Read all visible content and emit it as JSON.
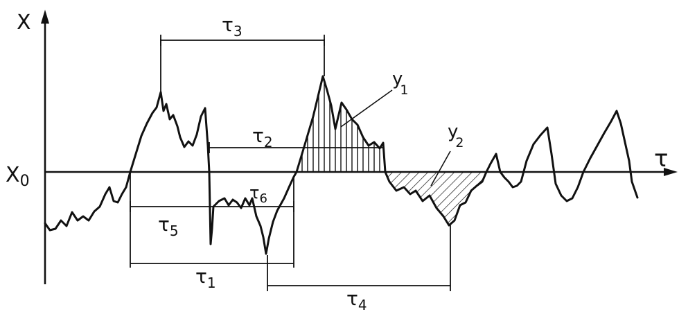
{
  "axes": {
    "x_axis_label": "τ",
    "y_axis_label": "X",
    "baseline_label": "X",
    "baseline_subscript": "0"
  },
  "shaded_regions": [
    {
      "label": "y",
      "subscript": "1",
      "hatch": "vertical",
      "side": "above"
    },
    {
      "label": "y",
      "subscript": "2",
      "hatch": "diagonal",
      "side": "below"
    }
  ],
  "intervals": [
    {
      "label": "τ",
      "subscript": "1"
    },
    {
      "label": "τ",
      "subscript": "2"
    },
    {
      "label": "τ",
      "subscript": "3"
    },
    {
      "label": "τ",
      "subscript": "4"
    },
    {
      "label": "τ",
      "subscript": "5"
    },
    {
      "label": "τ",
      "subscript": "6"
    }
  ],
  "colors": {
    "ink": "#111111",
    "background": "#ffffff"
  }
}
